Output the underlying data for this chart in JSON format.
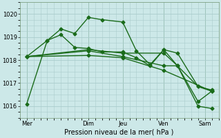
{
  "background_color": "#cce8e8",
  "grid_color": "#aacccc",
  "line_color": "#1a6b1a",
  "xlabel": "Pression niveau de la mer( hPa )",
  "ylim": [
    1015.5,
    1020.5
  ],
  "yticks": [
    1016,
    1017,
    1018,
    1019,
    1020
  ],
  "x_day_labels": [
    "Mer",
    "Dim",
    "Jeu",
    "Ven",
    "Sam"
  ],
  "x_day_positions": [
    0,
    4.5,
    7,
    10,
    13
  ],
  "xlim": [
    -0.5,
    14.0
  ],
  "series": [
    {
      "x": [
        0,
        1.5,
        2.5,
        3.5,
        4.5,
        5.5,
        7,
        8,
        9,
        10,
        11,
        12.5,
        13.5
      ],
      "y": [
        1016.1,
        1018.85,
        1019.35,
        1019.15,
        1019.85,
        1019.75,
        1019.65,
        1018.4,
        1017.8,
        1018.45,
        1018.3,
        1016.85,
        1016.7
      ],
      "marker": "D",
      "markersize": 2.5,
      "linewidth": 1.0
    },
    {
      "x": [
        0,
        1.5,
        2.5,
        3.5,
        4.5,
        5.5,
        7,
        8,
        9,
        10,
        11,
        12.5,
        13.5
      ],
      "y": [
        1018.15,
        1018.85,
        1019.1,
        1018.55,
        1018.5,
        1018.35,
        1018.35,
        1018.1,
        1017.75,
        1018.45,
        1017.75,
        1016.0,
        1015.9
      ],
      "marker": "D",
      "markersize": 2.5,
      "linewidth": 1.0
    },
    {
      "x": [
        0,
        4.5,
        7,
        10,
        11,
        12.5,
        13.5
      ],
      "y": [
        1018.15,
        1018.45,
        1018.3,
        1018.3,
        1017.75,
        1016.2,
        1016.65
      ],
      "marker": "D",
      "markersize": 2.5,
      "linewidth": 1.0
    },
    {
      "x": [
        0,
        4.5,
        7,
        10,
        13.5
      ],
      "y": [
        1018.15,
        1018.2,
        1018.1,
        1017.55,
        1016.65
      ],
      "marker": "D",
      "markersize": 2.5,
      "linewidth": 1.0
    },
    {
      "x": [
        0,
        4.5,
        7,
        10,
        11,
        12.5,
        13.5
      ],
      "y": [
        1018.15,
        1018.4,
        1018.15,
        1017.75,
        1017.75,
        1016.85,
        1016.65
      ],
      "marker": "D",
      "markersize": 2.5,
      "linewidth": 1.0
    }
  ],
  "vlines": [
    0,
    4.5,
    7,
    10,
    13
  ],
  "vline_color": "#448844",
  "xlabel_fontsize": 7,
  "ytick_fontsize": 6,
  "xtick_fontsize": 6
}
